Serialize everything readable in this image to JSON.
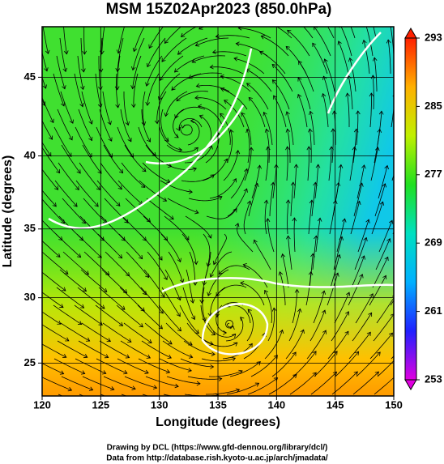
{
  "chart_data": {
    "type": "map",
    "title": "MSM 15Z02Apr2023 (850.0hPa)",
    "x_label": "Longitude (degrees)",
    "y_label": "Latitude  (degrees)",
    "xlim": [
      120,
      150
    ],
    "ylim": [
      22.4,
      48
    ],
    "xticks": [
      120,
      125,
      130,
      135,
      140,
      145,
      150
    ],
    "yticks": [
      25,
      30,
      35,
      40,
      45
    ],
    "colorbar": {
      "lim": [
        253,
        293
      ],
      "ticks": [
        253,
        261,
        269,
        277,
        285,
        293
      ],
      "colors": [
        "#e000e0",
        "#2020ff",
        "#00b0ff",
        "#00e0c0",
        "#20e020",
        "#c0f000",
        "#ffb000",
        "#ff2000"
      ]
    },
    "credits": [
      "Drawing by DCL (https://www.gfd-dennou.org/library/dcl/)",
      "Data from http://database.rish.kyoto-u.ac.jp/arch/jmadata/"
    ]
  }
}
